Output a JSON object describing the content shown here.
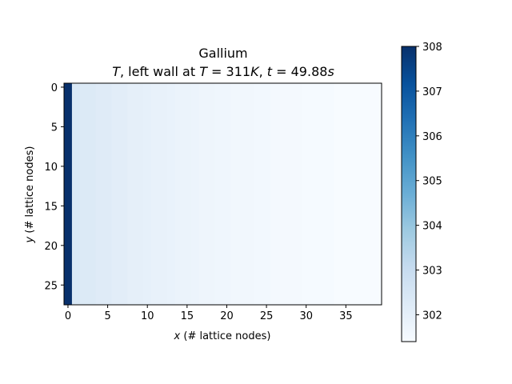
{
  "chart_data": {
    "type": "heatmap",
    "title_line1": "Gallium",
    "title_line2": {
      "var": "T",
      "middle": ", left wall at ",
      "eq1_var": "T",
      "eq1_rest": " = 311",
      "eq1_unit": "K",
      "sep": ", ",
      "eq2_var": "t",
      "eq2_rest": " = 49.88",
      "eq2_unit": "s"
    },
    "xlabel": {
      "var": "x",
      "rest": " (# lattice nodes)"
    },
    "ylabel": {
      "var": "y",
      "rest": " (# lattice nodes)"
    },
    "grid_cols": 40,
    "grid_rows": 28,
    "x_range": [
      -0.5,
      39.5
    ],
    "y_range": [
      27.5,
      -0.5
    ],
    "x_ticks": [
      0,
      5,
      10,
      15,
      20,
      25,
      30,
      35
    ],
    "y_ticks": [
      0,
      5,
      10,
      15,
      20,
      25
    ],
    "colormap": "Blues",
    "colorbar": {
      "min": 301.4,
      "max": 308.0,
      "ticks": [
        302,
        303,
        304,
        305,
        306,
        307,
        308
      ]
    },
    "column_values": [
      308.0,
      302.4,
      302.3,
      302.3,
      302.2,
      302.2,
      302.1,
      302.1,
      302.0,
      302.0,
      301.95,
      301.9,
      301.9,
      301.85,
      301.8,
      301.8,
      301.75,
      301.7,
      301.7,
      301.65,
      301.65,
      301.6,
      301.6,
      301.6,
      301.55,
      301.55,
      301.5,
      301.5,
      301.5,
      301.5,
      301.45,
      301.45,
      301.45,
      301.45,
      301.4,
      301.4,
      301.4,
      301.4,
      301.4,
      301.4
    ]
  }
}
